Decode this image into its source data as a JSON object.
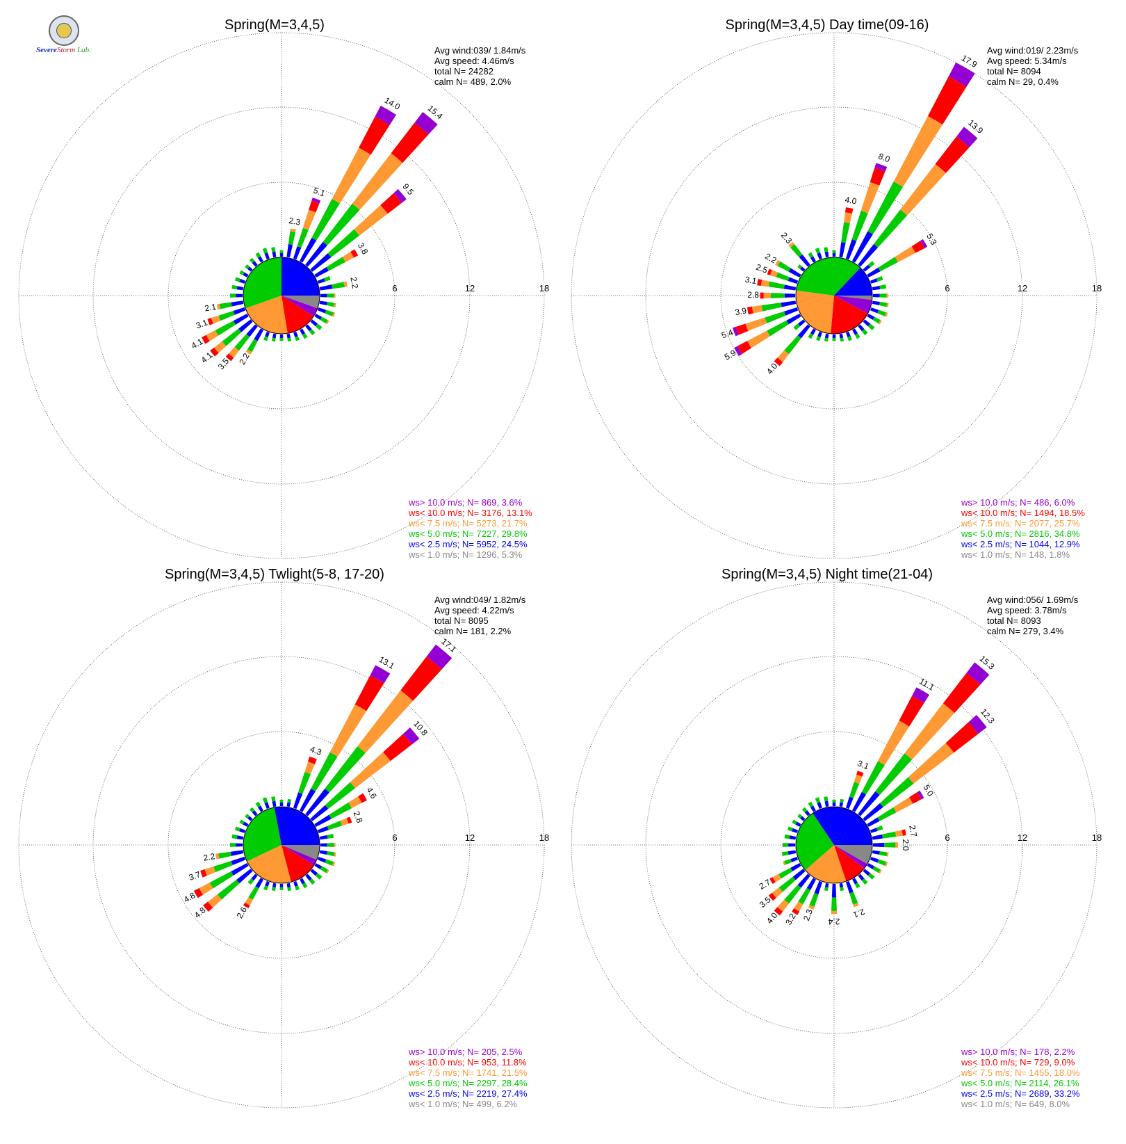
{
  "logo": {
    "text_severe": "Severe",
    "text_storm": "Storm",
    "text_lab": "Lab."
  },
  "colors": {
    "gt10": "#9400d3",
    "lt10": "#ff0000",
    "lt75": "#ff9933",
    "lt5": "#00cc00",
    "lt25": "#0000ff",
    "lt1": "#888888"
  },
  "chart_data": [
    {
      "type": "wind-rose",
      "title": "Spring(M=3,4,5)",
      "rlim": [
        0,
        18
      ],
      "rings": [
        "6",
        "12",
        "18"
      ],
      "info": [
        "Avg wind:039/ 1.84m/s",
        "Avg speed: 4.46m/s",
        "total N=       24282",
        "calm N=    489,   2.0%"
      ],
      "legend": [
        {
          "cat": "gt10",
          "text": "ws> 10.0 m/s; N=   869,  3.6%"
        },
        {
          "cat": "lt10",
          "text": "ws< 10.0 m/s; N=  3176, 13.1%"
        },
        {
          "cat": "lt75",
          "text": "ws<  7.5 m/s; N=  5273, 21.7%"
        },
        {
          "cat": "lt5",
          "text": "ws<  5.0 m/s; N=  7227, 29.8%"
        },
        {
          "cat": "lt25",
          "text": "ws<  2.5 m/s; N=  5952, 24.5%"
        },
        {
          "cat": "lt1",
          "text": "ws<  1.0 m/s; N=  1296,  5.3%"
        }
      ],
      "pie": [
        5.3,
        3.6,
        13.1,
        21.7,
        29.8,
        24.5
      ],
      "bars": [
        {
          "dir": 20,
          "total": 5.1,
          "label": "5.1"
        },
        {
          "dir": 30,
          "total": 14.0,
          "label": "14.0"
        },
        {
          "dir": 40,
          "total": 15.4,
          "label": "15.4"
        },
        {
          "dir": 50,
          "total": 9.5,
          "label": "9.5"
        },
        {
          "dir": 60,
          "total": 3.8,
          "label": "3.8"
        },
        {
          "dir": 80,
          "total": 2.2,
          "label": "2.2"
        },
        {
          "dir": 10,
          "total": 2.3,
          "label": "2.3"
        },
        {
          "dir": 240,
          "total": 4.1,
          "label": "4.1"
        },
        {
          "dir": 230,
          "total": 4.1,
          "label": "4.1"
        },
        {
          "dir": 220,
          "total": 3.5,
          "label": "3.5"
        },
        {
          "dir": 210,
          "total": 2.2,
          "label": "2.2"
        },
        {
          "dir": 250,
          "total": 3.1,
          "label": "3.1"
        },
        {
          "dir": 260,
          "total": 2.1,
          "label": "2.1"
        }
      ],
      "minor": [
        0.5,
        0.6,
        0.7,
        0.8,
        0.9,
        1.0,
        1.1,
        1.0,
        1.1,
        1.2,
        1.3,
        1.4,
        1.2,
        1.0,
        0.9,
        0.8,
        0.7,
        0.6,
        0.5,
        0.6,
        0.7,
        0.8,
        0.9,
        1.0,
        1.1,
        1.2,
        1.1,
        1.0,
        0.9,
        0.8,
        0.7,
        0.6,
        0.7,
        0.8,
        0.9,
        0.8
      ]
    },
    {
      "type": "wind-rose",
      "title": "Spring(M=3,4,5) Day time(09-16)",
      "rlim": [
        0,
        18
      ],
      "rings": [
        "6",
        "12",
        "18"
      ],
      "info": [
        "Avg wind:019/ 2.23m/s",
        "Avg speed: 5.34m/s",
        "total N=        8094",
        "calm N=     29,   0.4%"
      ],
      "legend": [
        {
          "cat": "gt10",
          "text": "ws> 10.0 m/s; N=   486,  6.0%"
        },
        {
          "cat": "lt10",
          "text": "ws< 10.0 m/s; N=  1494, 18.5%"
        },
        {
          "cat": "lt75",
          "text": "ws<  7.5 m/s; N=  2077, 25.7%"
        },
        {
          "cat": "lt5",
          "text": "ws<  5.0 m/s; N=  2816, 34.8%"
        },
        {
          "cat": "lt25",
          "text": "ws<  2.5 m/s; N=  1044, 12.9%"
        },
        {
          "cat": "lt1",
          "text": "ws<  1.0 m/s; N=   148,  1.8%"
        }
      ],
      "pie": [
        1.8,
        6.0,
        18.5,
        25.7,
        34.8,
        12.9
      ],
      "bars": [
        {
          "dir": 20,
          "total": 8.0,
          "label": "8.0"
        },
        {
          "dir": 30,
          "total": 17.9,
          "label": "17.9"
        },
        {
          "dir": 40,
          "total": 13.9,
          "label": "13.9"
        },
        {
          "dir": 60,
          "total": 5.3,
          "label": "5.3"
        },
        {
          "dir": 10,
          "total": 4.0,
          "label": "4.0"
        },
        {
          "dir": 240,
          "total": 5.9,
          "label": "5.9"
        },
        {
          "dir": 250,
          "total": 5.4,
          "label": "5.4"
        },
        {
          "dir": 220,
          "total": 4.0,
          "label": "4.0"
        },
        {
          "dir": 260,
          "total": 3.9,
          "label": "3.9"
        },
        {
          "dir": 270,
          "total": 2.8,
          "label": "2.8"
        },
        {
          "dir": 280,
          "total": 3.1,
          "label": "3.1"
        },
        {
          "dir": 290,
          "total": 2.5,
          "label": "2.5"
        },
        {
          "dir": 300,
          "total": 2.2,
          "label": "2.2"
        },
        {
          "dir": 320,
          "total": 2.3,
          "label": "2.3"
        }
      ],
      "minor": [
        0.5,
        0.6,
        0.7,
        0.8,
        0.9,
        1.0,
        1.1,
        1.0,
        1.1,
        1.2,
        1.3,
        1.4,
        1.2,
        1.0,
        0.9,
        0.8,
        0.7,
        0.6,
        0.5,
        0.6,
        0.7,
        0.8,
        0.9,
        1.0,
        1.1,
        1.2,
        1.1,
        1.0,
        0.9,
        0.8,
        0.7,
        0.6,
        0.7,
        0.8,
        0.9,
        0.8
      ]
    },
    {
      "type": "wind-rose",
      "title": "Spring(M=3,4,5) Twlight(5-8, 17-20)",
      "rlim": [
        0,
        18
      ],
      "rings": [
        "6",
        "12",
        "18"
      ],
      "info": [
        "Avg wind:049/ 1.82m/s",
        "Avg speed: 4.22m/s",
        "total N=        8095",
        "calm N=    181,   2.2%"
      ],
      "legend": [
        {
          "cat": "gt10",
          "text": "ws> 10.0 m/s; N=   205,  2.5%"
        },
        {
          "cat": "lt10",
          "text": "ws< 10.0 m/s; N=   953, 11.8%"
        },
        {
          "cat": "lt75",
          "text": "ws<  7.5 m/s; N=  1741, 21.5%"
        },
        {
          "cat": "lt5",
          "text": "ws<  5.0 m/s; N=  2297, 28.4%"
        },
        {
          "cat": "lt25",
          "text": "ws<  2.5 m/s; N=  2219, 27.4%"
        },
        {
          "cat": "lt1",
          "text": "ws<  1.0 m/s; N=   499,  6.2%"
        }
      ],
      "pie": [
        6.2,
        2.5,
        11.8,
        21.5,
        28.4,
        27.4
      ],
      "bars": [
        {
          "dir": 20,
          "total": 4.3,
          "label": "4.3"
        },
        {
          "dir": 30,
          "total": 13.1,
          "label": "13.1"
        },
        {
          "dir": 40,
          "total": 17.1,
          "label": "17.1"
        },
        {
          "dir": 50,
          "total": 10.8,
          "label": "10.8"
        },
        {
          "dir": 60,
          "total": 4.6,
          "label": "4.6"
        },
        {
          "dir": 70,
          "total": 2.8,
          "label": "2.8"
        },
        {
          "dir": 230,
          "total": 4.8,
          "label": "4.8"
        },
        {
          "dir": 240,
          "total": 4.8,
          "label": "4.8"
        },
        {
          "dir": 250,
          "total": 3.7,
          "label": "3.7"
        },
        {
          "dir": 260,
          "total": 2.2,
          "label": "2.2"
        },
        {
          "dir": 210,
          "total": 2.6,
          "label": "2.6"
        }
      ],
      "minor": [
        0.5,
        0.6,
        0.7,
        0.8,
        0.9,
        1.0,
        1.1,
        1.0,
        1.1,
        1.2,
        1.3,
        1.4,
        1.2,
        1.0,
        0.9,
        0.8,
        0.7,
        0.6,
        0.5,
        0.6,
        0.7,
        0.8,
        0.9,
        1.0,
        1.1,
        1.2,
        1.1,
        1.0,
        0.9,
        0.8,
        0.7,
        0.6,
        0.7,
        0.8,
        0.9,
        0.8
      ]
    },
    {
      "type": "wind-rose",
      "title": "Spring(M=3,4,5) Night time(21-04)",
      "rlim": [
        0,
        18
      ],
      "rings": [
        "6",
        "12",
        "18"
      ],
      "info": [
        "Avg wind:056/ 1.69m/s",
        "Avg speed: 3.78m/s",
        "total N=        8093",
        "calm N=    279,   3.4%"
      ],
      "legend": [
        {
          "cat": "gt10",
          "text": "ws> 10.0 m/s; N=   178,  2.2%"
        },
        {
          "cat": "lt10",
          "text": "ws< 10.0 m/s; N=   729,  9.0%"
        },
        {
          "cat": "lt75",
          "text": "ws<  7.5 m/s; N=  1455, 18.0%"
        },
        {
          "cat": "lt5",
          "text": "ws<  5.0 m/s; N=  2114, 26.1%"
        },
        {
          "cat": "lt25",
          "text": "ws<  2.5 m/s; N=  2689, 33.2%"
        },
        {
          "cat": "lt1",
          "text": "ws<  1.0 m/s; N=   649,  8.0%"
        }
      ],
      "pie": [
        8.0,
        2.2,
        9.0,
        18.0,
        26.1,
        33.2
      ],
      "bars": [
        {
          "dir": 20,
          "total": 3.1,
          "label": "3.1"
        },
        {
          "dir": 30,
          "total": 11.1,
          "label": "11.1"
        },
        {
          "dir": 40,
          "total": 15.3,
          "label": "15.3"
        },
        {
          "dir": 50,
          "total": 12.3,
          "label": "12.3"
        },
        {
          "dir": 60,
          "total": 5.0,
          "label": "5.0"
        },
        {
          "dir": 80,
          "total": 2.7,
          "label": "2.7"
        },
        {
          "dir": 90,
          "total": 2.0,
          "label": "2.0"
        },
        {
          "dir": 160,
          "total": 2.1,
          "label": "2.1"
        },
        {
          "dir": 180,
          "total": 2.4,
          "label": "2.4"
        },
        {
          "dir": 200,
          "total": 2.3,
          "label": "2.3"
        },
        {
          "dir": 210,
          "total": 3.2,
          "label": "3.2"
        },
        {
          "dir": 220,
          "total": 4.0,
          "label": "4.0"
        },
        {
          "dir": 230,
          "total": 3.5,
          "label": "3.5"
        },
        {
          "dir": 240,
          "total": 2.7,
          "label": "2.7"
        }
      ],
      "minor": [
        0.5,
        0.6,
        0.7,
        0.8,
        0.9,
        1.0,
        1.1,
        1.0,
        1.1,
        1.2,
        1.3,
        1.4,
        1.2,
        1.0,
        0.9,
        0.8,
        0.7,
        0.6,
        0.5,
        0.6,
        0.7,
        0.8,
        0.9,
        1.0,
        1.1,
        1.2,
        1.1,
        1.0,
        0.9,
        0.8,
        0.7,
        0.6,
        0.7,
        0.8,
        0.9,
        0.8
      ]
    }
  ]
}
